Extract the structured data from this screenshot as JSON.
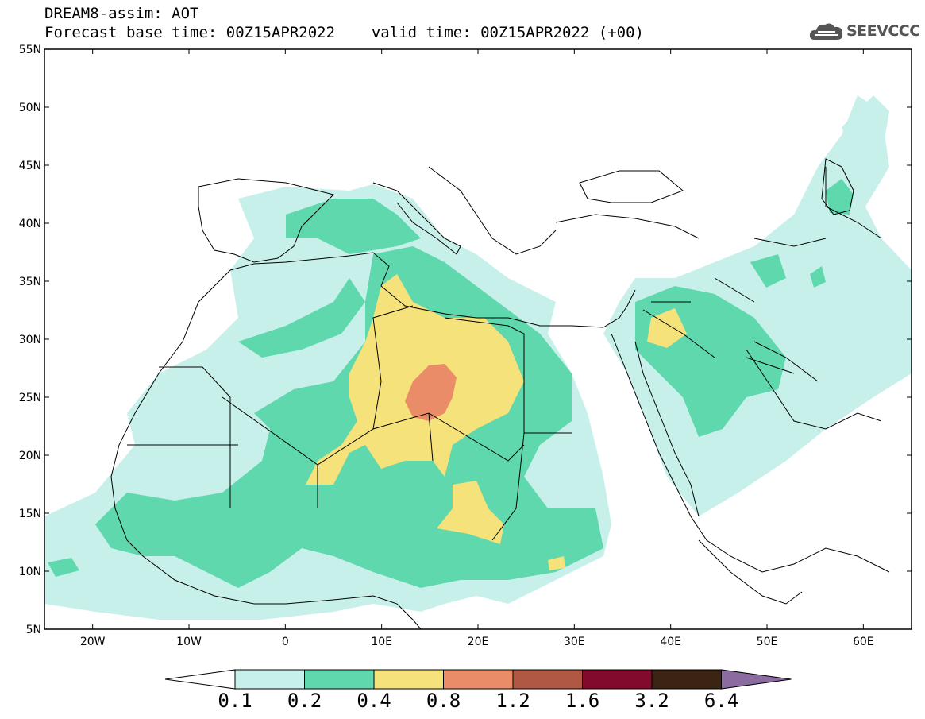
{
  "title": {
    "line1": "DREAM8-assim: AOT",
    "line2_base": "Forecast base time: 00Z15APR2022",
    "line2_valid": "valid time: 00Z15APR2022 (+00)"
  },
  "logo": {
    "text": "SEEVCCC",
    "icon": "cloud-icon"
  },
  "axes": {
    "lat_labels": [
      "55N",
      "50N",
      "45N",
      "40N",
      "35N",
      "30N",
      "25N",
      "20N",
      "15N",
      "10N",
      "5N"
    ],
    "lon_labels": [
      "20W",
      "10W",
      "0",
      "10E",
      "20E",
      "30E",
      "40E",
      "50E",
      "60E"
    ],
    "lon_range": [
      -25,
      65
    ],
    "lat_range": [
      5,
      55
    ]
  },
  "colorbar": {
    "boundaries": [
      "0.1",
      "0.2",
      "0.4",
      "0.8",
      "1.2",
      "1.6",
      "3.2",
      "6.4"
    ],
    "colors": [
      "#c8f0eb",
      "#5fd8ad",
      "#f5e27a",
      "#eb8c68",
      "#b05844",
      "#820a2c",
      "#3b2414",
      "#8c6ca0"
    ]
  }
}
